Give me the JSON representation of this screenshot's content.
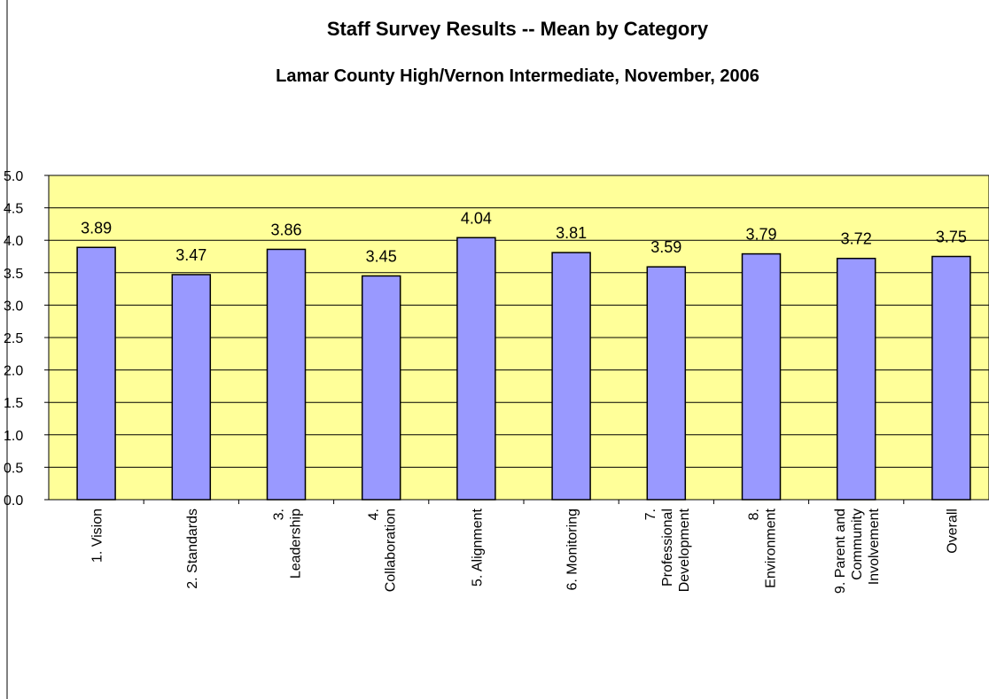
{
  "chart_data": {
    "type": "bar",
    "title": "Staff Survey Results -- Mean by Category",
    "subtitle": "Lamar County High/Vernon Intermediate, November, 2006",
    "xlabel": "",
    "ylabel": "",
    "ylim": [
      0,
      5
    ],
    "yticks": [
      "0.0",
      "0.5",
      "1.0",
      "1.5",
      "2.0",
      "2.5",
      "3.0",
      "3.5",
      "4.0",
      "4.5",
      "5.0"
    ],
    "grid": true,
    "legend": "none",
    "categories": [
      [
        "1. Vision"
      ],
      [
        "2. Standards"
      ],
      [
        "3.",
        "Leadership"
      ],
      [
        "4.",
        "Collaboration"
      ],
      [
        "5. Alignment"
      ],
      [
        "6. Monitoring"
      ],
      [
        "7.",
        "Professional",
        "Development"
      ],
      [
        "8.",
        "Environment"
      ],
      [
        "9. Parent and",
        "Community",
        "Involvement"
      ],
      [
        "Overall"
      ]
    ],
    "values": [
      3.89,
      3.47,
      3.86,
      3.45,
      4.04,
      3.81,
      3.59,
      3.79,
      3.72,
      3.75
    ],
    "data_labels": [
      "3.89",
      "3.47",
      "3.86",
      "3.45",
      "4.04",
      "3.81",
      "3.59",
      "3.79",
      "3.72",
      "3.75"
    ],
    "colors": {
      "plot_background": "#FFFF99",
      "bar_fill": "#9999FF",
      "bar_stroke": "#000000",
      "gridline": "#000000"
    }
  }
}
